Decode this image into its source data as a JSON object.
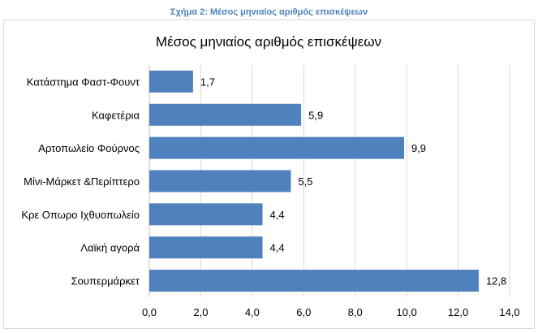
{
  "caption": "Σχήμα 2: Μέσος μηνιαίος αριθμός επισκέψεων",
  "chart_data": {
    "type": "bar",
    "orientation": "horizontal",
    "title": "Μέσος μηνιαίος αριθμός επισκέψεων",
    "categories": [
      "Κατάστημα Φαστ-Φουντ",
      "Καφετέρια",
      "Αρτοπωλείο Φούρνος",
      "Μίνι-Μάρκετ &Περίπτερο",
      "Κρε Οπωρο Ιχθυοπωλείο",
      "Λαϊκή αγορά",
      "Σουπερμάρκετ"
    ],
    "values": [
      1.7,
      5.9,
      9.9,
      5.5,
      4.4,
      4.4,
      12.8
    ],
    "value_labels": [
      "1,7",
      "5,9",
      "9,9",
      "5,5",
      "4,4",
      "4,4",
      "12,8"
    ],
    "xlim": [
      0,
      14
    ],
    "xticks": [
      0,
      2,
      4,
      6,
      8,
      10,
      12,
      14
    ],
    "xtick_labels": [
      "0,0",
      "2,0",
      "4,0",
      "6,0",
      "8,0",
      "10,0",
      "12,0",
      "14,0"
    ],
    "xlabel": "",
    "ylabel": "",
    "grid": true,
    "bar_color": "#4f81bd"
  }
}
